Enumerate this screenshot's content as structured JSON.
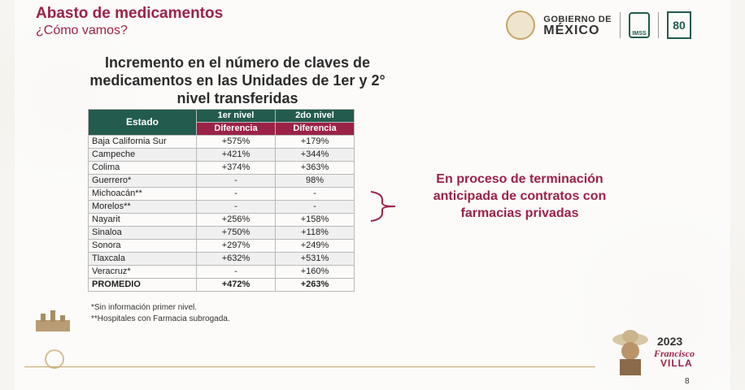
{
  "header": {
    "title": "Abasto de medicamentos",
    "subtitle": "¿Cómo vamos?"
  },
  "logos": {
    "gobierno_line1": "GOBIERNO DE",
    "gobierno_line2": "MÉXICO",
    "imss_label": "IMSS",
    "imss80_label": "80"
  },
  "heading": {
    "line1": "Incremento en el número de claves de",
    "line2": "medicamentos en las Unidades de 1er y 2°",
    "line3": "nivel transferidas"
  },
  "table": {
    "col_estado": "Estado",
    "col_nivel1": "1er nivel",
    "col_nivel2": "2do nivel",
    "col_diff1": "Diferencia",
    "col_diff2": "Diferencia",
    "rows": [
      {
        "estado": "Baja California Sur",
        "n1": "+575%",
        "n2": "+179%"
      },
      {
        "estado": "Campeche",
        "n1": "+421%",
        "n2": "+344%"
      },
      {
        "estado": "Colima",
        "n1": "+374%",
        "n2": "+363%"
      },
      {
        "estado": "Guerrero*",
        "n1": "-",
        "n2": "98%"
      },
      {
        "estado": "Michoacán**",
        "n1": "-",
        "n2": "-"
      },
      {
        "estado": "Morelos**",
        "n1": "-",
        "n2": "-"
      },
      {
        "estado": "Nayarit",
        "n1": "+256%",
        "n2": "+158%"
      },
      {
        "estado": "Sinaloa",
        "n1": "+750%",
        "n2": "+118%"
      },
      {
        "estado": "Sonora",
        "n1": "+297%",
        "n2": "+249%"
      },
      {
        "estado": "Tlaxcala",
        "n1": "+632%",
        "n2": "+531%"
      },
      {
        "estado": "Veracruz*",
        "n1": "-",
        "n2": "+160%"
      }
    ],
    "promedio": {
      "estado": "PROMEDIO",
      "n1": "+472%",
      "n2": "+263%"
    }
  },
  "notes": {
    "note1": "*Sin información primer nivel.",
    "note2": "**Hospitales con Farmacia subrogada."
  },
  "callout": {
    "line1": "En proceso de terminación",
    "line2": "anticipada de contratos con",
    "line3": "farmacias privadas"
  },
  "footer": {
    "year": "2023",
    "francisco": "Francisco",
    "villa": "VILLA",
    "page_number": "8"
  },
  "colors": {
    "accent_red": "#9b2247",
    "accent_green": "#235b4e",
    "gold": "#c5a46a"
  }
}
